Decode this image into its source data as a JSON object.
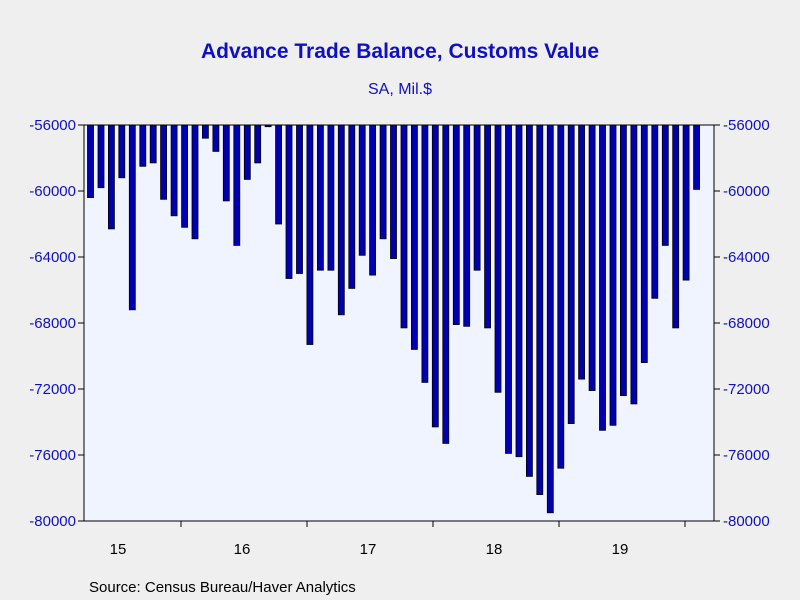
{
  "chart_data": {
    "type": "bar",
    "title": "Advance Trade Balance, Customs Value",
    "subtitle": "SA, Mil.$",
    "source": "Source:  Census Bureau/Haver Analytics",
    "ylim": [
      -80000,
      -56000
    ],
    "y_ticks": [
      -56000,
      -60000,
      -64000,
      -68000,
      -72000,
      -76000,
      -80000
    ],
    "y_tick_labels": [
      "-56000",
      "-60000",
      "-64000",
      "-68000",
      "-72000",
      "-76000",
      "-80000"
    ],
    "x_year_labels": [
      "15",
      "16",
      "17",
      "18",
      "19"
    ],
    "bar_color": "#0000b0",
    "title_color": "#1010c0",
    "plot_background": "#f0f4ff",
    "grid": false,
    "series": [
      {
        "values": [
          -60400,
          -59800,
          -62300,
          -59200,
          -67200,
          -58500,
          -58300,
          -60500,
          -61500,
          -62200,
          -62900,
          -56800,
          -57600,
          -60600,
          -63300,
          -59300,
          -58300,
          -56100,
          -62000,
          -65300,
          -65000,
          -69300,
          -64800,
          -64800,
          -67500,
          -65900,
          -63900,
          -65100,
          -62900,
          -64100,
          -68300,
          -69600,
          -71600,
          -74300,
          -75300,
          -68100,
          -68200,
          -64800,
          -68300,
          -72200,
          -75900,
          -76100,
          -77300,
          -78400,
          -79500,
          -76800,
          -74100,
          -71400,
          -72100,
          -74500,
          -74200,
          -72400,
          -72900,
          -70400,
          -66500,
          -63300,
          -68300,
          -65400,
          -59900
        ]
      }
    ]
  }
}
